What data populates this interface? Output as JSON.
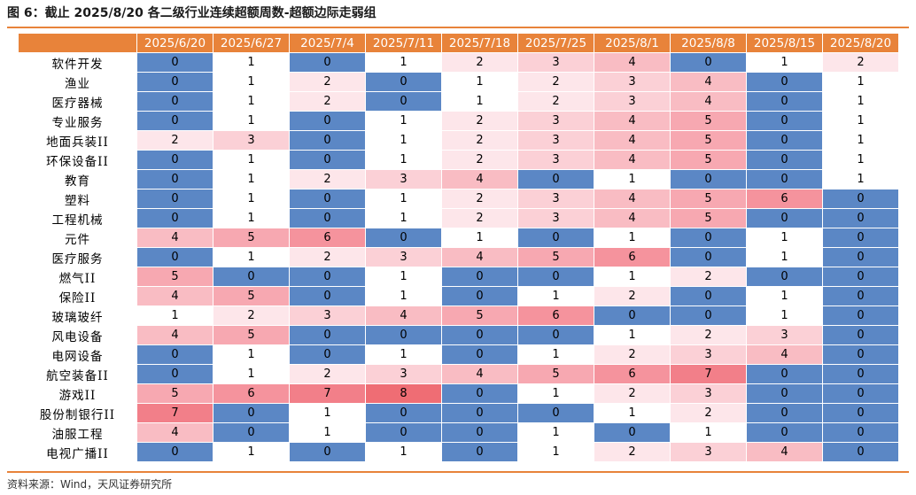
{
  "title": "图 6：截止 2025/8/20 各二级行业连续超额周数-超额边际走弱组",
  "source": "资料来源：Wind，天风证券研究所",
  "colors": {
    "header": "#e8833a",
    "zero": "#5b87c5",
    "scale": [
      "#ffffff",
      "#fde6ea",
      "#fbd0d6",
      "#f9bcc3",
      "#f7a8b1",
      "#f5939d",
      "#f27f89",
      "#ef6d74"
    ]
  },
  "chart_data": {
    "type": "table",
    "columns": [
      "2025/6/20",
      "2025/6/27",
      "2025/7/4",
      "2025/7/11",
      "2025/7/18",
      "2025/7/25",
      "2025/8/1",
      "2025/8/8",
      "2025/8/15",
      "2025/8/20"
    ],
    "rows": [
      {
        "name": "软件开发",
        "values": [
          0,
          1,
          0,
          1,
          2,
          3,
          4,
          0,
          1,
          2
        ]
      },
      {
        "name": "渔业",
        "values": [
          0,
          1,
          2,
          0,
          1,
          2,
          3,
          4,
          0,
          1
        ]
      },
      {
        "name": "医疗器械",
        "values": [
          0,
          1,
          2,
          0,
          1,
          2,
          3,
          4,
          0,
          1
        ]
      },
      {
        "name": "专业服务",
        "values": [
          0,
          1,
          0,
          1,
          2,
          3,
          4,
          5,
          0,
          1
        ]
      },
      {
        "name": "地面兵装II",
        "values": [
          2,
          3,
          0,
          1,
          2,
          3,
          4,
          5,
          0,
          1
        ]
      },
      {
        "name": "环保设备II",
        "values": [
          0,
          1,
          0,
          1,
          2,
          3,
          4,
          5,
          0,
          1
        ]
      },
      {
        "name": "教育",
        "values": [
          0,
          1,
          2,
          3,
          4,
          0,
          1,
          0,
          0,
          1
        ]
      },
      {
        "name": "塑料",
        "values": [
          0,
          1,
          0,
          1,
          2,
          3,
          4,
          5,
          6,
          0
        ]
      },
      {
        "name": "工程机械",
        "values": [
          0,
          1,
          0,
          1,
          2,
          3,
          4,
          5,
          0,
          0
        ]
      },
      {
        "name": "元件",
        "values": [
          4,
          5,
          6,
          0,
          1,
          0,
          1,
          0,
          1,
          0
        ]
      },
      {
        "name": "医疗服务",
        "values": [
          0,
          1,
          2,
          3,
          4,
          5,
          6,
          0,
          1,
          0
        ]
      },
      {
        "name": "燃气II",
        "values": [
          5,
          0,
          0,
          1,
          0,
          0,
          1,
          2,
          0,
          0
        ]
      },
      {
        "name": "保险II",
        "values": [
          4,
          5,
          0,
          1,
          0,
          1,
          2,
          0,
          1,
          0
        ]
      },
      {
        "name": "玻璃玻纤",
        "values": [
          1,
          2,
          3,
          4,
          5,
          6,
          0,
          0,
          1,
          0
        ]
      },
      {
        "name": "风电设备",
        "values": [
          4,
          5,
          0,
          0,
          0,
          0,
          1,
          2,
          3,
          0
        ]
      },
      {
        "name": "电网设备",
        "values": [
          0,
          1,
          0,
          1,
          0,
          1,
          2,
          3,
          4,
          0
        ]
      },
      {
        "name": "航空装备II",
        "values": [
          0,
          1,
          2,
          3,
          4,
          5,
          6,
          7,
          0,
          0
        ]
      },
      {
        "name": "游戏II",
        "values": [
          5,
          6,
          7,
          8,
          0,
          1,
          2,
          3,
          0,
          0
        ]
      },
      {
        "name": "股份制银行II",
        "values": [
          7,
          0,
          1,
          0,
          0,
          0,
          1,
          2,
          0,
          0
        ]
      },
      {
        "name": "油服工程",
        "values": [
          4,
          0,
          1,
          0,
          0,
          1,
          0,
          1,
          0,
          0
        ]
      },
      {
        "name": "电视广播II",
        "values": [
          0,
          1,
          0,
          1,
          0,
          1,
          2,
          3,
          4,
          0
        ]
      }
    ]
  }
}
